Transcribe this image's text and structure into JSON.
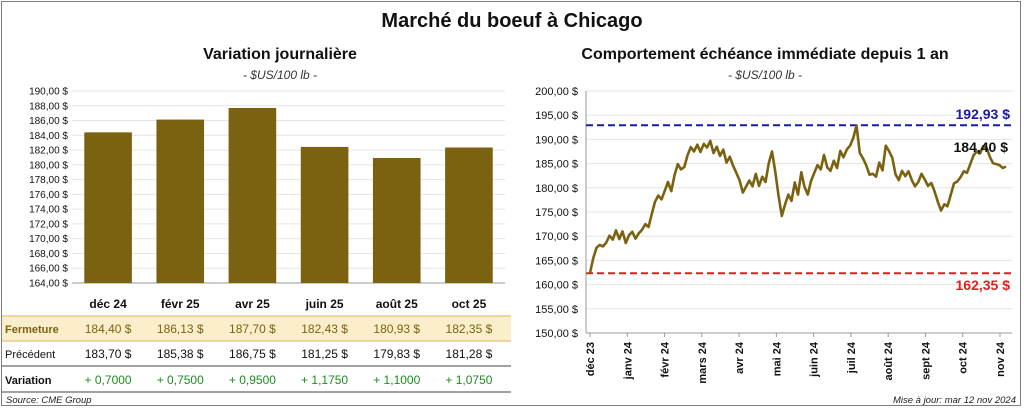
{
  "title": "Marché du boeuf à Chicago",
  "left": {
    "title": "Variation  journalière",
    "subtitle": "- $US/100 lb -",
    "row_labels": {
      "close": "Fermeture",
      "previous": "Précédent",
      "change": "Variation"
    }
  },
  "right": {
    "title": "Comportement  échéance immédiate depuis 1 an",
    "subtitle": "- $US/100 lb -",
    "high_label": "192,93 $",
    "low_label": "162,35 $",
    "last_label": "184,40 $"
  },
  "footer": {
    "source": "Source: CME Group",
    "updated": "Mise à jour: mar 12 nov 2024"
  },
  "colors": {
    "bar": "#7b6210",
    "line": "#7b6210",
    "high": "#1a1aa6",
    "low": "#e02020",
    "close_row_bg": "#fbeecb",
    "change": "#1e8c1e"
  },
  "chart_data": [
    {
      "type": "bar",
      "categories": [
        "déc 24",
        "févr 25",
        "avr 25",
        "juin 25",
        "août 25",
        "oct 25"
      ],
      "values": [
        184.4,
        186.13,
        187.7,
        182.43,
        180.93,
        182.35
      ],
      "ylim": [
        164,
        190
      ],
      "yticks": [
        "164,00 $",
        "166,00 $",
        "168,00 $",
        "170,00 $",
        "172,00 $",
        "174,00 $",
        "176,00 $",
        "178,00 $",
        "180,00 $",
        "182,00 $",
        "184,00 $",
        "186,00 $",
        "188,00 $",
        "190,00 $"
      ],
      "table": {
        "close": [
          "184,40  $",
          "186,13  $",
          "187,70  $",
          "182,43  $",
          "180,93  $",
          "182,35  $"
        ],
        "previous": [
          "183,70  $",
          "185,38  $",
          "186,75  $",
          "181,25  $",
          "179,83  $",
          "181,28  $"
        ],
        "change": [
          "+ 0,7000",
          "+ 0,7500",
          "+ 0,9500",
          "+ 1,1750",
          "+ 1,1000",
          "+ 1,0750"
        ]
      }
    },
    {
      "type": "line",
      "ylim": [
        150,
        200
      ],
      "yticks": [
        "150,00 $",
        "155,00 $",
        "160,00 $",
        "165,00 $",
        "170,00 $",
        "175,00 $",
        "180,00 $",
        "185,00 $",
        "190,00 $",
        "195,00 $",
        "200,00 $"
      ],
      "x_labels": [
        "déc 23",
        "janv 24",
        "févr 24",
        "mars 24",
        "avr 24",
        "mai 24",
        "juin 24",
        "juil 24",
        "août 24",
        "sept 24",
        "oct 24",
        "nov 24"
      ],
      "hlines": [
        {
          "value": 192.93
        },
        {
          "value": 162.35
        }
      ],
      "series": [
        {
          "values": [
            162.4,
            165.5,
            167.6,
            168.2,
            167.9,
            168.7,
            170.1,
            169.3,
            171.2,
            169.4,
            171.0,
            168.6,
            170.2,
            170.9,
            169.5,
            170.6,
            171.3,
            172.5,
            171.9,
            174.6,
            177.1,
            178.4,
            177.6,
            179.4,
            181.2,
            179.3,
            182.6,
            184.9,
            183.8,
            184.3,
            186.7,
            188.4,
            187.5,
            188.9,
            187.4,
            189.1,
            188.3,
            189.7,
            187.2,
            188.5,
            186.6,
            187.9,
            185.2,
            186.4,
            184.6,
            183.1,
            181.6,
            179.0,
            180.2,
            181.5,
            180.3,
            182.9,
            180.4,
            182.3,
            181.2,
            185.1,
            187.5,
            183.3,
            178.4,
            174.2,
            176.5,
            178.6,
            177.3,
            181.1,
            178.6,
            183.2,
            180.2,
            178.6,
            181.4,
            183.1,
            184.7,
            183.8,
            186.8,
            184.2,
            183.5,
            185.6,
            184.1,
            187.6,
            186.3,
            187.9,
            188.7,
            190.3,
            192.9,
            187.2,
            186.1,
            184.6,
            182.7,
            182.9,
            182.3,
            185.2,
            183.6,
            188.7,
            187.6,
            186.2,
            182.8,
            181.6,
            183.5,
            182.4,
            183.4,
            181.6,
            180.3,
            181.2,
            182.9,
            181.7,
            180.4,
            181.0,
            179.3,
            177.1,
            175.3,
            176.6,
            176.2,
            178.6,
            180.9,
            181.3,
            182.2,
            183.4,
            183.1,
            184.9,
            186.7,
            187.5,
            187.1,
            188.6,
            188.3,
            186.4,
            185.1,
            184.9,
            184.7,
            184.1,
            184.4
          ]
        }
      ]
    }
  ]
}
